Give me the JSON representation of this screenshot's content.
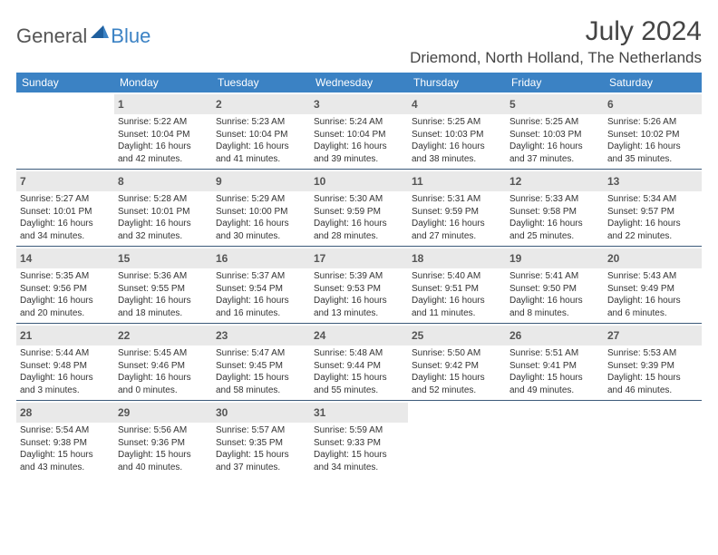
{
  "logo": {
    "text_gray": "General",
    "text_blue": "Blue"
  },
  "title": "July 2024",
  "location": "Driemond, North Holland, The Netherlands",
  "colors": {
    "header_bg": "#3b82c4",
    "week_divider": "#3b5a7a",
    "daynum_bg": "#e9e9e9",
    "page_bg": "#ffffff"
  },
  "weekdays": [
    "Sunday",
    "Monday",
    "Tuesday",
    "Wednesday",
    "Thursday",
    "Friday",
    "Saturday"
  ],
  "weeks": [
    [
      null,
      {
        "n": "1",
        "sunrise": "5:22 AM",
        "sunset": "10:04 PM",
        "daylight": "16 hours and 42 minutes."
      },
      {
        "n": "2",
        "sunrise": "5:23 AM",
        "sunset": "10:04 PM",
        "daylight": "16 hours and 41 minutes."
      },
      {
        "n": "3",
        "sunrise": "5:24 AM",
        "sunset": "10:04 PM",
        "daylight": "16 hours and 39 minutes."
      },
      {
        "n": "4",
        "sunrise": "5:25 AM",
        "sunset": "10:03 PM",
        "daylight": "16 hours and 38 minutes."
      },
      {
        "n": "5",
        "sunrise": "5:25 AM",
        "sunset": "10:03 PM",
        "daylight": "16 hours and 37 minutes."
      },
      {
        "n": "6",
        "sunrise": "5:26 AM",
        "sunset": "10:02 PM",
        "daylight": "16 hours and 35 minutes."
      }
    ],
    [
      {
        "n": "7",
        "sunrise": "5:27 AM",
        "sunset": "10:01 PM",
        "daylight": "16 hours and 34 minutes."
      },
      {
        "n": "8",
        "sunrise": "5:28 AM",
        "sunset": "10:01 PM",
        "daylight": "16 hours and 32 minutes."
      },
      {
        "n": "9",
        "sunrise": "5:29 AM",
        "sunset": "10:00 PM",
        "daylight": "16 hours and 30 minutes."
      },
      {
        "n": "10",
        "sunrise": "5:30 AM",
        "sunset": "9:59 PM",
        "daylight": "16 hours and 28 minutes."
      },
      {
        "n": "11",
        "sunrise": "5:31 AM",
        "sunset": "9:59 PM",
        "daylight": "16 hours and 27 minutes."
      },
      {
        "n": "12",
        "sunrise": "5:33 AM",
        "sunset": "9:58 PM",
        "daylight": "16 hours and 25 minutes."
      },
      {
        "n": "13",
        "sunrise": "5:34 AM",
        "sunset": "9:57 PM",
        "daylight": "16 hours and 22 minutes."
      }
    ],
    [
      {
        "n": "14",
        "sunrise": "5:35 AM",
        "sunset": "9:56 PM",
        "daylight": "16 hours and 20 minutes."
      },
      {
        "n": "15",
        "sunrise": "5:36 AM",
        "sunset": "9:55 PM",
        "daylight": "16 hours and 18 minutes."
      },
      {
        "n": "16",
        "sunrise": "5:37 AM",
        "sunset": "9:54 PM",
        "daylight": "16 hours and 16 minutes."
      },
      {
        "n": "17",
        "sunrise": "5:39 AM",
        "sunset": "9:53 PM",
        "daylight": "16 hours and 13 minutes."
      },
      {
        "n": "18",
        "sunrise": "5:40 AM",
        "sunset": "9:51 PM",
        "daylight": "16 hours and 11 minutes."
      },
      {
        "n": "19",
        "sunrise": "5:41 AM",
        "sunset": "9:50 PM",
        "daylight": "16 hours and 8 minutes."
      },
      {
        "n": "20",
        "sunrise": "5:43 AM",
        "sunset": "9:49 PM",
        "daylight": "16 hours and 6 minutes."
      }
    ],
    [
      {
        "n": "21",
        "sunrise": "5:44 AM",
        "sunset": "9:48 PM",
        "daylight": "16 hours and 3 minutes."
      },
      {
        "n": "22",
        "sunrise": "5:45 AM",
        "sunset": "9:46 PM",
        "daylight": "16 hours and 0 minutes."
      },
      {
        "n": "23",
        "sunrise": "5:47 AM",
        "sunset": "9:45 PM",
        "daylight": "15 hours and 58 minutes."
      },
      {
        "n": "24",
        "sunrise": "5:48 AM",
        "sunset": "9:44 PM",
        "daylight": "15 hours and 55 minutes."
      },
      {
        "n": "25",
        "sunrise": "5:50 AM",
        "sunset": "9:42 PM",
        "daylight": "15 hours and 52 minutes."
      },
      {
        "n": "26",
        "sunrise": "5:51 AM",
        "sunset": "9:41 PM",
        "daylight": "15 hours and 49 minutes."
      },
      {
        "n": "27",
        "sunrise": "5:53 AM",
        "sunset": "9:39 PM",
        "daylight": "15 hours and 46 minutes."
      }
    ],
    [
      {
        "n": "28",
        "sunrise": "5:54 AM",
        "sunset": "9:38 PM",
        "daylight": "15 hours and 43 minutes."
      },
      {
        "n": "29",
        "sunrise": "5:56 AM",
        "sunset": "9:36 PM",
        "daylight": "15 hours and 40 minutes."
      },
      {
        "n": "30",
        "sunrise": "5:57 AM",
        "sunset": "9:35 PM",
        "daylight": "15 hours and 37 minutes."
      },
      {
        "n": "31",
        "sunrise": "5:59 AM",
        "sunset": "9:33 PM",
        "daylight": "15 hours and 34 minutes."
      },
      null,
      null,
      null
    ]
  ],
  "labels": {
    "sunrise": "Sunrise: ",
    "sunset": "Sunset: ",
    "daylight": "Daylight: "
  }
}
